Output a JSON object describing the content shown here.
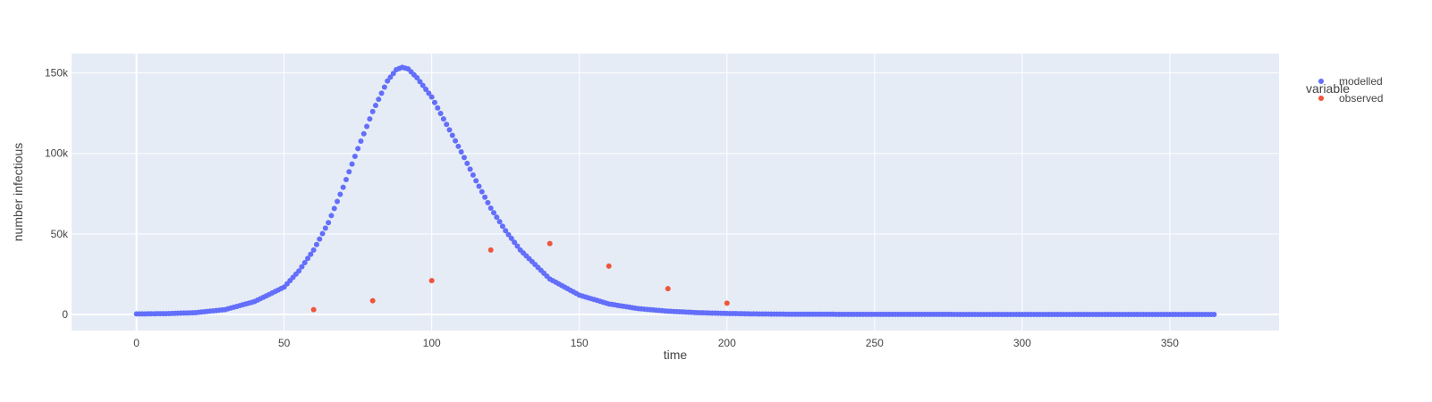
{
  "chart_data": {
    "type": "scatter",
    "xlabel": "time",
    "ylabel": "number infectious",
    "xlim": [
      -22,
      387
    ],
    "ylim": [
      -10000,
      162000
    ],
    "xticks": [
      0,
      50,
      100,
      150,
      200,
      250,
      300,
      350
    ],
    "yticks": [
      0,
      50000,
      100000,
      150000
    ],
    "xtick_labels": [
      "0",
      "50",
      "100",
      "150",
      "200",
      "250",
      "300",
      "350"
    ],
    "ytick_labels": [
      "0",
      "50k",
      "100k",
      "150k"
    ],
    "grid": true,
    "plot_background": "#e5ecf6",
    "grid_color": "#ffffff",
    "legend": {
      "title": "variable",
      "position": "right"
    },
    "series": [
      {
        "name": "modelled",
        "color": "#636efa",
        "x_start": 0,
        "x_end": 365,
        "x_step": 1,
        "x": [
          0,
          10,
          20,
          30,
          40,
          50,
          55,
          60,
          65,
          70,
          75,
          80,
          85,
          88,
          90,
          92,
          95,
          100,
          105,
          110,
          115,
          120,
          125,
          130,
          140,
          150,
          160,
          170,
          180,
          190,
          200,
          210,
          220,
          250,
          300,
          365
        ],
        "y": [
          300,
          500,
          1100,
          3000,
          8000,
          17000,
          27000,
          40000,
          57000,
          79000,
          103000,
          126000,
          145000,
          152000,
          153500,
          152500,
          147000,
          135000,
          118000,
          101000,
          83000,
          66000,
          52000,
          40000,
          22000,
          12000,
          6500,
          3600,
          2000,
          1100,
          600,
          300,
          150,
          40,
          5,
          0
        ]
      },
      {
        "name": "observed",
        "color": "#ef553b",
        "x": [
          60,
          80,
          100,
          120,
          140,
          160,
          180,
          200
        ],
        "y": [
          3000,
          8500,
          21000,
          40000,
          44000,
          30000,
          16000,
          7000
        ]
      }
    ]
  }
}
